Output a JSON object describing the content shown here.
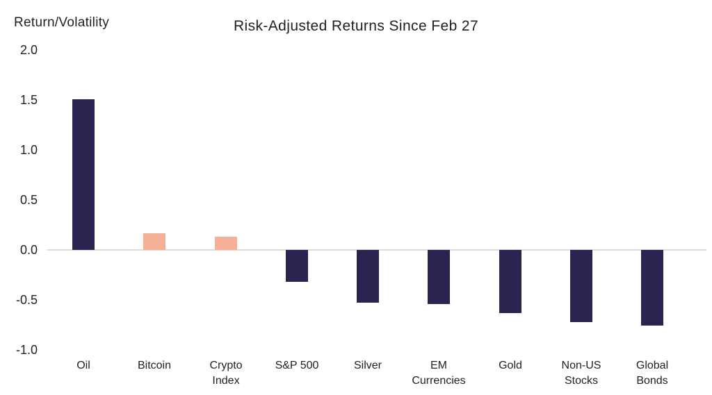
{
  "chart_data": {
    "type": "bar",
    "title": "Risk-Adjusted Returns Since Feb 27",
    "ylabel": "Return/Volatility",
    "xlabel": "",
    "categories": [
      "Oil",
      "Bitcoin",
      "Crypto\nIndex",
      "S&P 500",
      "Silver",
      "EM\nCurrencies",
      "Gold",
      "Non-US\nStocks",
      "Global\nBonds"
    ],
    "values": [
      1.51,
      0.17,
      0.13,
      -0.32,
      -0.53,
      -0.54,
      -0.63,
      -0.72,
      -0.76
    ],
    "bar_colors": [
      "#2c2351",
      "#f4b096",
      "#f4b096",
      "#2c2351",
      "#2c2351",
      "#2c2351",
      "#2c2351",
      "#2c2351",
      "#2c2351"
    ],
    "ytick_labels": [
      "2.0",
      "1.5",
      "1.0",
      "0.5",
      "0.0",
      "-0.5",
      "-1.0"
    ],
    "yticks": [
      2.0,
      1.5,
      1.0,
      0.5,
      0.0,
      -0.5,
      -1.0
    ],
    "ylim": [
      -1.0,
      2.0
    ],
    "grid": "zero-line only",
    "legend": "none",
    "colors": {
      "dark_bar": "#2c2351",
      "accent_bar": "#f4b096",
      "zero_line": "#dcdcdc",
      "text": "#1f1f1f",
      "background": "#ffffff"
    }
  }
}
